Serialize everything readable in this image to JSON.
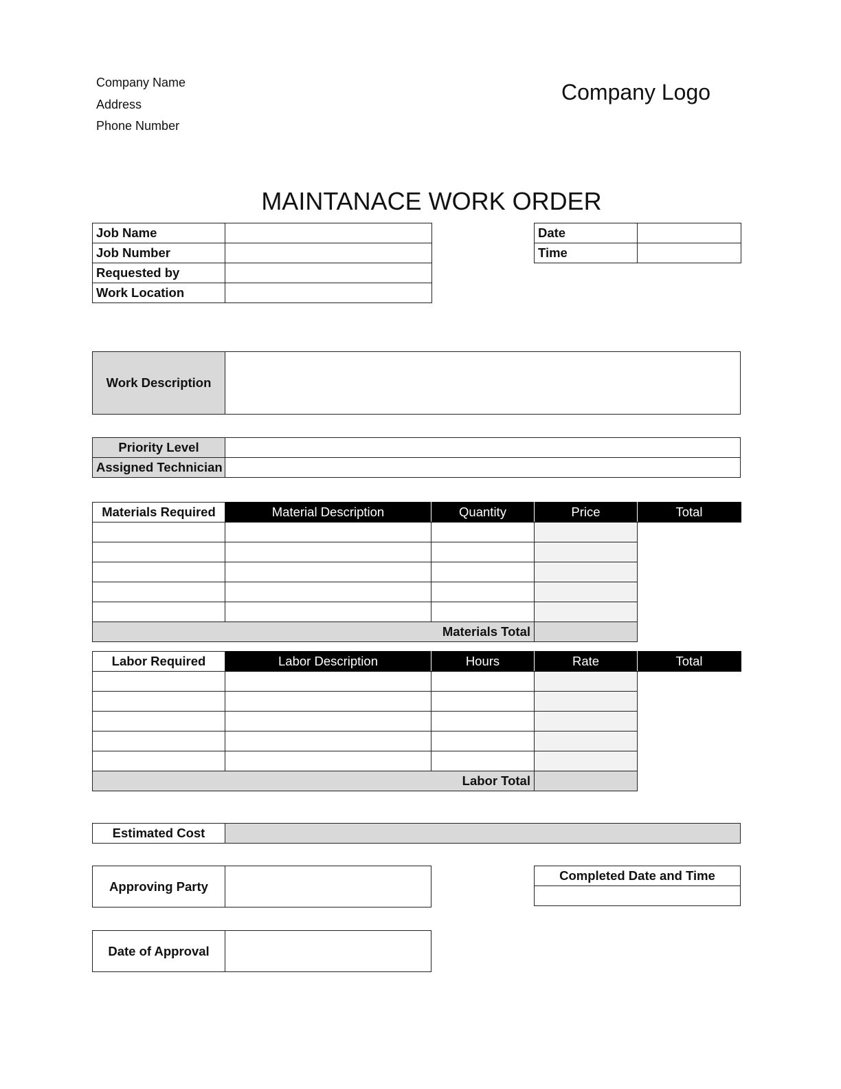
{
  "company": {
    "name": "Company Name",
    "address": "Address",
    "phone": "Phone Number",
    "logo": "Company Logo"
  },
  "title": "MAINTANACE WORK ORDER",
  "job_info": {
    "job_name": "Job Name",
    "job_number": "Job Number",
    "requested_by": "Requested by",
    "work_location": "Work Location"
  },
  "date_time": {
    "date": "Date",
    "time": "Time"
  },
  "work_description": "Work Description",
  "priority_level": "Priority Level",
  "assigned_technician": "Assigned Technician",
  "materials": {
    "section_label": "Materials Required",
    "headers": [
      "Material Description",
      "Quantity",
      "Price",
      "Total"
    ],
    "total_label": "Materials Total"
  },
  "labor": {
    "section_label": "Labor Required",
    "headers": [
      "Labor Description",
      "Hours",
      "Rate",
      "Total"
    ],
    "total_label": "Labor Total"
  },
  "estimated_cost": "Estimated Cost",
  "approving_party": "Approving Party",
  "completed_date_time": "Completed Date and Time",
  "date_of_approval": "Date of Approval",
  "colors": {
    "header_bg": "#000000",
    "label_gray": "#d9d9d9",
    "total_cell": "#f2f2f2"
  }
}
